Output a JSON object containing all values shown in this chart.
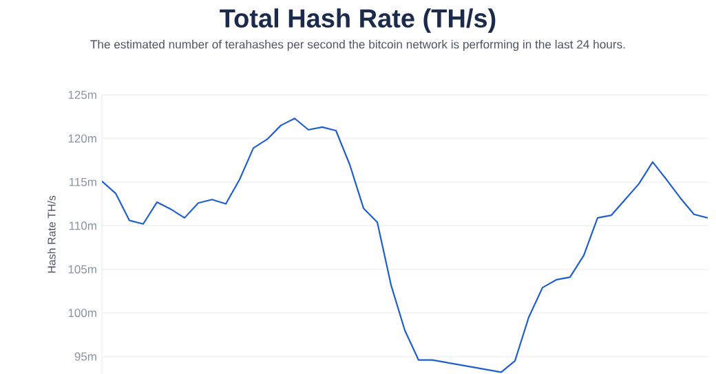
{
  "chart_data": {
    "type": "line",
    "title": "Total Hash Rate (TH/s)",
    "subtitle": "The estimated number of terahashes per second the bitcoin network is performing in the last 24 hours.",
    "ylabel": "Hash Rate TH/s",
    "categories": [
      null,
      null,
      null,
      null,
      null,
      null,
      null,
      null,
      null,
      null,
      null,
      null,
      null,
      null,
      null,
      null,
      null,
      null,
      null,
      null,
      null,
      null,
      null,
      null,
      null,
      null,
      null,
      null,
      null,
      null,
      null,
      null,
      null,
      null,
      null,
      null,
      null,
      null,
      null,
      null,
      null,
      null,
      null,
      null,
      null
    ],
    "series": [
      {
        "color": "#1f5fcc",
        "values": [
          115.1,
          113.7,
          110.6,
          110.2,
          112.7,
          111.9,
          110.9,
          112.6,
          113.0,
          112.5,
          115.3,
          118.9,
          119.9,
          121.5,
          122.3,
          121.0,
          121.3,
          120.9,
          117.0,
          112.0,
          110.4,
          103.2,
          98.0,
          94.6,
          94.6,
          null,
          null,
          null,
          null,
          93.2,
          94.5,
          99.5,
          102.9,
          103.8,
          104.1,
          106.6,
          110.9,
          111.2,
          113.0,
          114.8,
          117.3,
          115.3,
          113.2,
          111.3,
          110.9
        ]
      }
    ],
    "ylim": [
      93,
      125
    ],
    "yticks": [
      {
        "value": 95,
        "label": "95m"
      },
      {
        "value": 100,
        "label": "100m"
      },
      {
        "value": 105,
        "label": "105m"
      },
      {
        "value": 110,
        "label": "110m"
      },
      {
        "value": 115,
        "label": "115m"
      },
      {
        "value": 120,
        "label": "120m"
      },
      {
        "value": 125,
        "label": "125m"
      }
    ],
    "grid": "y",
    "tick_labels": "y",
    "marker": "none",
    "line_style": "solid"
  }
}
